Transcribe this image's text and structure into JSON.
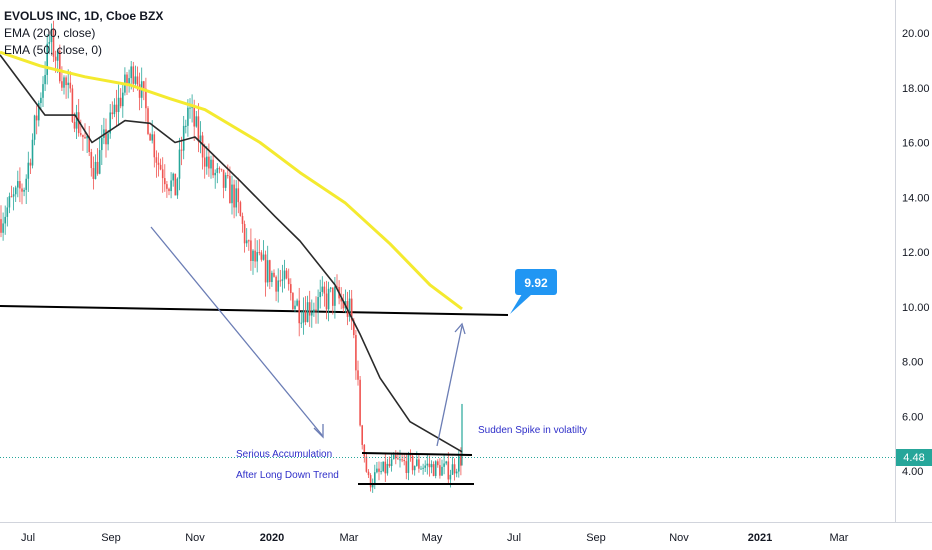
{
  "legend": {
    "symbol": "EVOLUS INC, 1D, Cboe BZX",
    "ema200": "EMA (200, close)",
    "ema50": "EMA (50, close, 0)"
  },
  "colors": {
    "up": "#26a69a",
    "down": "#ef5350",
    "ema200": "#f4ea2f",
    "ema50": "#2a2a2a",
    "annotation_arrow": "#6b7db5",
    "callout_bg": "#2196f3",
    "last_price_bg": "#26a69a"
  },
  "price_axis": {
    "ticks": [
      "4.00",
      "6.00",
      "8.00",
      "10.00",
      "12.00",
      "14.00",
      "16.00",
      "18.00",
      "20.00"
    ]
  },
  "time_axis": {
    "ticks": [
      "Jul",
      "Sep",
      "Nov",
      "2020",
      "Mar",
      "May",
      "Jul",
      "Sep",
      "Nov",
      "2021",
      "Mar"
    ]
  },
  "callout": {
    "value": "9.92"
  },
  "last_price": {
    "value": "4.48"
  },
  "annotations": {
    "accumulation_1": "Serious Accumulation",
    "accumulation_2": "After Long Down Trend",
    "spike": "Sudden Spike in volatilty"
  },
  "chart_data": {
    "type": "line",
    "title": "EVOLUS INC, 1D, Cboe BZX",
    "y_range": [
      3.0,
      21.2
    ],
    "x_ticks": [
      "Jul",
      "Sep",
      "Nov",
      "2020",
      "Mar",
      "May",
      "Jul",
      "Sep",
      "Nov",
      "2021",
      "Mar"
    ],
    "series": [
      {
        "name": "EVOLUS INC",
        "points": [
          [
            "Jun",
            13.2
          ],
          [
            "Jul",
            14.5
          ],
          [
            "Jul",
            19.8
          ],
          [
            "Aug",
            17.0
          ],
          [
            "Aug",
            15.0
          ],
          [
            "Sep",
            17.2
          ],
          [
            "Sep",
            18.8
          ],
          [
            "Oct",
            15.3
          ],
          [
            "Oct",
            14.2
          ],
          [
            "Nov",
            17.3
          ],
          [
            "Nov",
            15.0
          ],
          [
            "Dec",
            14.0
          ],
          [
            "Dec",
            11.8
          ],
          [
            "2020",
            10.8
          ],
          [
            "Jan",
            9.9
          ],
          [
            "Feb",
            10.4
          ],
          [
            "Feb",
            9.8
          ],
          [
            "Mar",
            8.6
          ],
          [
            "Mar",
            5.8
          ],
          [
            "Mar",
            3.6
          ],
          [
            "Apr",
            4.3
          ],
          [
            "May",
            4.2
          ],
          [
            "May",
            4.0
          ],
          [
            "May",
            4.48
          ]
        ]
      },
      {
        "name": "EMA (200, close)",
        "points": [
          [
            "Jun",
            19.3
          ],
          [
            "Jul",
            18.8
          ],
          [
            "Aug",
            18.4
          ],
          [
            "Sep",
            18.1
          ],
          [
            "Oct",
            17.6
          ],
          [
            "Nov",
            17.2
          ],
          [
            "Dec",
            16.0
          ],
          [
            "2020",
            14.9
          ],
          [
            "Feb",
            13.8
          ],
          [
            "Mar",
            12.3
          ],
          [
            "Apr",
            10.8
          ],
          [
            "May",
            9.92
          ]
        ]
      },
      {
        "name": "EMA (50, close, 0)",
        "points": [
          [
            "Jun",
            19.2
          ],
          [
            "Jul",
            17.0
          ],
          [
            "Aug",
            17.0
          ],
          [
            "Aug",
            16.0
          ],
          [
            "Sep",
            16.8
          ],
          [
            "Oct",
            16.7
          ],
          [
            "Oct",
            16.0
          ],
          [
            "Nov",
            16.2
          ],
          [
            "Dec",
            14.6
          ],
          [
            "2020",
            13.3
          ],
          [
            "Jan",
            12.4
          ],
          [
            "Feb",
            10.8
          ],
          [
            "Mar",
            9.0
          ],
          [
            "Mar",
            7.4
          ],
          [
            "Apr",
            5.8
          ],
          [
            "May",
            4.7
          ]
        ]
      }
    ],
    "horizontal_levels": [
      10.0,
      4.7,
      3.55
    ]
  }
}
